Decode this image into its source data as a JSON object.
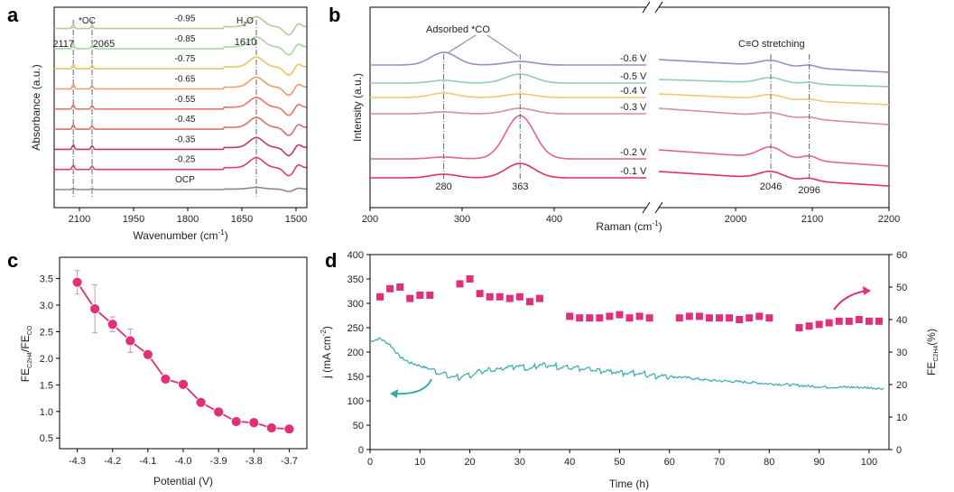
{
  "panel_labels": [
    "a",
    "b",
    "c",
    "d"
  ],
  "chart_data": [
    {
      "panel": "a",
      "type": "line",
      "xlabel": "Wavenumber (cm",
      "xlabel_sup": "-1",
      "xlabel_tail": ")",
      "ylabel": "Absorbance (a.u.)",
      "xlim": [
        2170,
        1470
      ],
      "xticks": [
        "2100",
        "1950",
        "1800",
        "1650",
        "1500"
      ],
      "xtick_values": [
        2100,
        1950,
        1800,
        1650,
        1500
      ],
      "peaks": [
        {
          "label": "2117",
          "x": 2117
        },
        {
          "label": "2065",
          "x": 2065
        },
        {
          "label": "1610",
          "x": 1610
        }
      ],
      "annotations": {
        "oc": "*OC",
        "h2o": "H",
        "h2o_sub": "2",
        "h2o_tail": "O"
      },
      "series": [
        {
          "name": "-0.95",
          "color": "#b5cc9b",
          "offset": 9
        },
        {
          "name": "-0.85",
          "color": "#a8d6a5",
          "offset": 8
        },
        {
          "name": "-0.75",
          "color": "#f0c064",
          "offset": 7
        },
        {
          "name": "-0.65",
          "color": "#ef9a6e",
          "offset": 6
        },
        {
          "name": "-0.55",
          "color": "#e6785e",
          "offset": 5
        },
        {
          "name": "-0.45",
          "color": "#d9706a",
          "offset": 4
        },
        {
          "name": "-0.35",
          "color": "#c0386c",
          "offset": 3
        },
        {
          "name": "-0.25",
          "color": "#e23a78",
          "offset": 2
        },
        {
          "name": "OCP",
          "color": "#8a8a8a",
          "offset": 1
        }
      ]
    },
    {
      "panel": "b",
      "type": "line",
      "xlabel": "Raman (cm",
      "xlabel_sup": "-1",
      "xlabel_tail": ")",
      "ylabel": "Intensity (a.u.)",
      "xlim_left": [
        200,
        500
      ],
      "xlim_right": [
        1900,
        2200
      ],
      "xticks_left": [
        "200",
        "300",
        "400"
      ],
      "xtick_values_left": [
        200,
        300,
        400
      ],
      "xticks_right": [
        "2000",
        "2100",
        "2200"
      ],
      "xtick_values_right": [
        2000,
        2100,
        2200
      ],
      "annotations": {
        "adsorbed": "Adsorbed *CO",
        "stretch": "C≡O stretching"
      },
      "peaks": [
        {
          "label": "280",
          "x": 280
        },
        {
          "label": "363",
          "x": 363
        },
        {
          "label": "2046",
          "x": 2046
        },
        {
          "label": "2096",
          "x": 2096
        }
      ],
      "series": [
        {
          "name": "-0.6 V",
          "color": "#9b8cc9"
        },
        {
          "name": "-0.5 V",
          "color": "#8ecbc4"
        },
        {
          "name": "-0.4 V",
          "color": "#f2c777"
        },
        {
          "name": "-0.3 V",
          "color": "#d88f98"
        },
        {
          "name": "-0.2 V",
          "color": "#e3609a"
        },
        {
          "name": "-0.1 V",
          "color": "#e0306a"
        }
      ]
    },
    {
      "panel": "c",
      "type": "line",
      "xlabel": "Potential (V)",
      "ylabel_main": "FE",
      "ylabel_sub1": "C2H4",
      "ylabel_mid": "/FE",
      "ylabel_sub2": "CO",
      "xlim": [
        -4.35,
        -3.65
      ],
      "ylim": [
        0.3,
        3.9
      ],
      "xticks": [
        "-4.3",
        "-4.2",
        "-4.1",
        "-4.0",
        "-3.9",
        "-3.8",
        "-3.7"
      ],
      "xtick_values": [
        -4.3,
        -4.2,
        -4.1,
        -4.0,
        -3.9,
        -3.8,
        -3.7
      ],
      "yticks": [
        "0.5",
        "1.0",
        "1.5",
        "2.0",
        "2.5",
        "3.0",
        "3.5"
      ],
      "ytick_values": [
        0.5,
        1.0,
        1.5,
        2.0,
        2.5,
        3.0,
        3.5
      ],
      "x": [
        -4.3,
        -4.25,
        -4.2,
        -4.15,
        -4.1,
        -4.05,
        -4.0,
        -3.95,
        -3.9,
        -3.85,
        -3.8,
        -3.75,
        -3.7
      ],
      "y": [
        3.43,
        2.93,
        2.64,
        2.33,
        2.07,
        1.61,
        1.51,
        1.17,
        0.99,
        0.81,
        0.79,
        0.69,
        0.67
      ],
      "err": [
        0.22,
        0.45,
        0.14,
        0.22,
        0.05,
        0.03,
        0.04,
        0.04,
        0.03,
        0.03,
        0.03,
        0.03,
        0.03
      ],
      "color": "#e0307a"
    },
    {
      "panel": "d",
      "type": "scatter+line",
      "xlabel": "Time (h)",
      "ylabel_left": "j (mA cm",
      "ylabel_left_sup": "-2",
      "ylabel_left_tail": ")",
      "ylabel_right_main": "FE",
      "ylabel_right_sub": "C2H4",
      "ylabel_right_tail": "(%)",
      "xlim": [
        0,
        104
      ],
      "ylim_left": [
        0,
        400
      ],
      "ylim_right": [
        0,
        60
      ],
      "xticks": [
        "0",
        "10",
        "20",
        "30",
        "40",
        "50",
        "60",
        "70",
        "80",
        "90",
        "100"
      ],
      "xtick_values": [
        0,
        10,
        20,
        30,
        40,
        50,
        60,
        70,
        80,
        90,
        100
      ],
      "yticks_left": [
        "0",
        "50",
        "100",
        "150",
        "200",
        "250",
        "300",
        "350",
        "400"
      ],
      "ytick_values_left": [
        0,
        50,
        100,
        150,
        200,
        250,
        300,
        350,
        400
      ],
      "yticks_right": [
        "0",
        "10",
        "20",
        "30",
        "40",
        "50",
        "60"
      ],
      "ytick_values_right": [
        0,
        10,
        20,
        30,
        40,
        50,
        60
      ],
      "fe_color": "#e0307a",
      "j_color": "#3aa9a9",
      "fe_x": [
        2,
        4,
        6,
        8,
        10,
        12,
        18,
        20,
        22,
        24,
        26,
        28,
        30,
        32,
        34,
        40,
        42,
        44,
        46,
        48,
        50,
        52,
        54,
        56,
        62,
        64,
        66,
        68,
        70,
        72,
        74,
        76,
        78,
        80,
        86,
        88,
        90,
        92,
        94,
        96,
        98,
        100,
        102
      ],
      "fe_y": [
        47,
        49.5,
        50,
        46.5,
        47.5,
        47.5,
        51,
        52.5,
        48,
        47,
        47,
        46.5,
        47,
        45.5,
        46.5,
        41,
        40.5,
        40.5,
        40.5,
        41,
        41.5,
        40.5,
        41,
        40.5,
        40.5,
        41,
        41,
        40.5,
        40.5,
        40.5,
        40,
        40.5,
        41,
        40.5,
        37.5,
        38,
        38.5,
        39,
        39.5,
        39.5,
        40,
        39.5,
        39.5
      ],
      "j_x": [
        0,
        2,
        4,
        6,
        8,
        10,
        12,
        14,
        16,
        18,
        20,
        22,
        24,
        26,
        28,
        30,
        32,
        34,
        36,
        38,
        40,
        44,
        48,
        52,
        56,
        60,
        64,
        68,
        72,
        76,
        80,
        84,
        88,
        92,
        96,
        100,
        103
      ],
      "j_y": [
        222,
        228,
        215,
        190,
        178,
        172,
        165,
        158,
        150,
        148,
        152,
        160,
        163,
        165,
        170,
        172,
        165,
        175,
        172,
        170,
        168,
        163,
        160,
        157,
        153,
        150,
        147,
        142,
        140,
        138,
        135,
        133,
        130,
        128,
        128,
        127,
        125
      ]
    }
  ]
}
